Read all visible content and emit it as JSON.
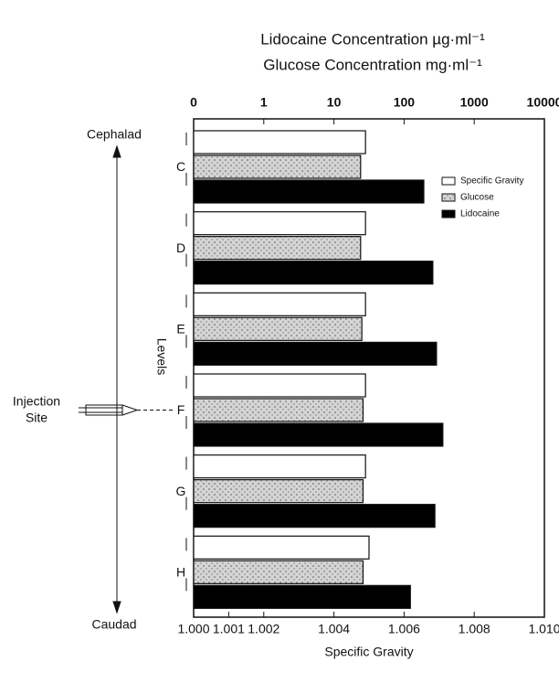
{
  "chart_data": {
    "type": "bar",
    "orientation": "horizontal",
    "x2label": [
      "Lidocaine Concentration µg·ml⁻¹",
      "Glucose Concentration mg·ml⁻¹"
    ],
    "xlabel": "Specific Gravity",
    "ylabel": "Levels",
    "categories": [
      "C",
      "D",
      "E",
      "F",
      "G",
      "H"
    ],
    "xlim": [
      1.0,
      1.01
    ],
    "xticks": [
      {
        "value": 1.0,
        "label": "1.000"
      },
      {
        "value": 1.001,
        "label": "1.001"
      },
      {
        "value": 1.002,
        "label": "1.002"
      },
      {
        "value": 1.004,
        "label": "1.004"
      },
      {
        "value": 1.006,
        "label": "1.006"
      },
      {
        "value": 1.008,
        "label": "1.008"
      },
      {
        "value": 1.01,
        "label": "1.010"
      }
    ],
    "x2lim": [
      0.1,
      10000
    ],
    "x2scale": "log",
    "x2ticks": [
      {
        "value": 0.1,
        "label": "0"
      },
      1,
      10,
      100,
      1000,
      10000
    ],
    "legend": "upper right",
    "series": [
      {
        "name": "Specific Gravity",
        "color": "#ffffff",
        "values": [
          1.0049,
          1.0049,
          1.0049,
          1.0049,
          1.0049,
          1.005
        ]
      },
      {
        "name": "Glucose",
        "color": "#d4d4d4",
        "axis": "x2",
        "values": [
          24,
          24,
          25,
          26,
          26,
          26
        ]
      },
      {
        "name": "Lidocaine",
        "color": "#000000",
        "axis": "x2",
        "values": [
          191,
          257,
          290,
          357,
          275,
          123
        ]
      }
    ],
    "annotations": [
      "Cephalad",
      "Caudad",
      "Injection",
      "Site"
    ]
  }
}
